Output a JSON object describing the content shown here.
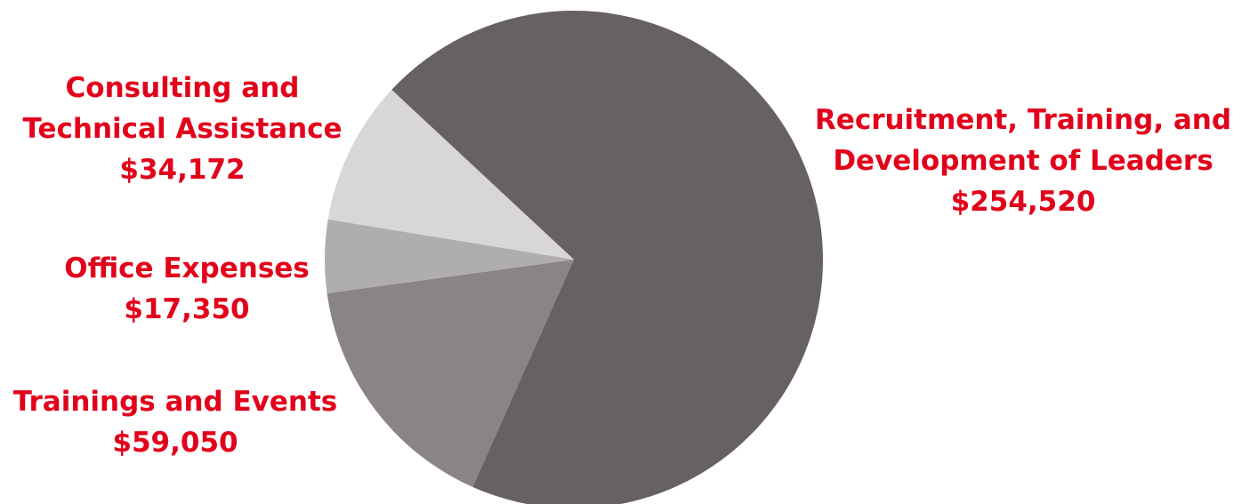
{
  "chart_data": {
    "type": "pie",
    "slices": [
      {
        "label_lines": [
          "Recruitment, Training, and",
          "Development of Leaders"
        ],
        "value_label": "$254,520",
        "value": 254520,
        "color": "#676161"
      },
      {
        "label_lines": [
          "Trainings and Events"
        ],
        "value_label": "$59,050",
        "value": 59050,
        "color": "#8a8584"
      },
      {
        "label_lines": [
          "Office Expenses"
        ],
        "value_label": "$17,350",
        "value": 17350,
        "color": "#b0adad"
      },
      {
        "label_lines": [
          "Consulting and",
          "Technical Assistance"
        ],
        "value_label": "$34,172",
        "value": 34172,
        "color": "#d8d6d7"
      }
    ],
    "label_color": "#e2001a"
  }
}
